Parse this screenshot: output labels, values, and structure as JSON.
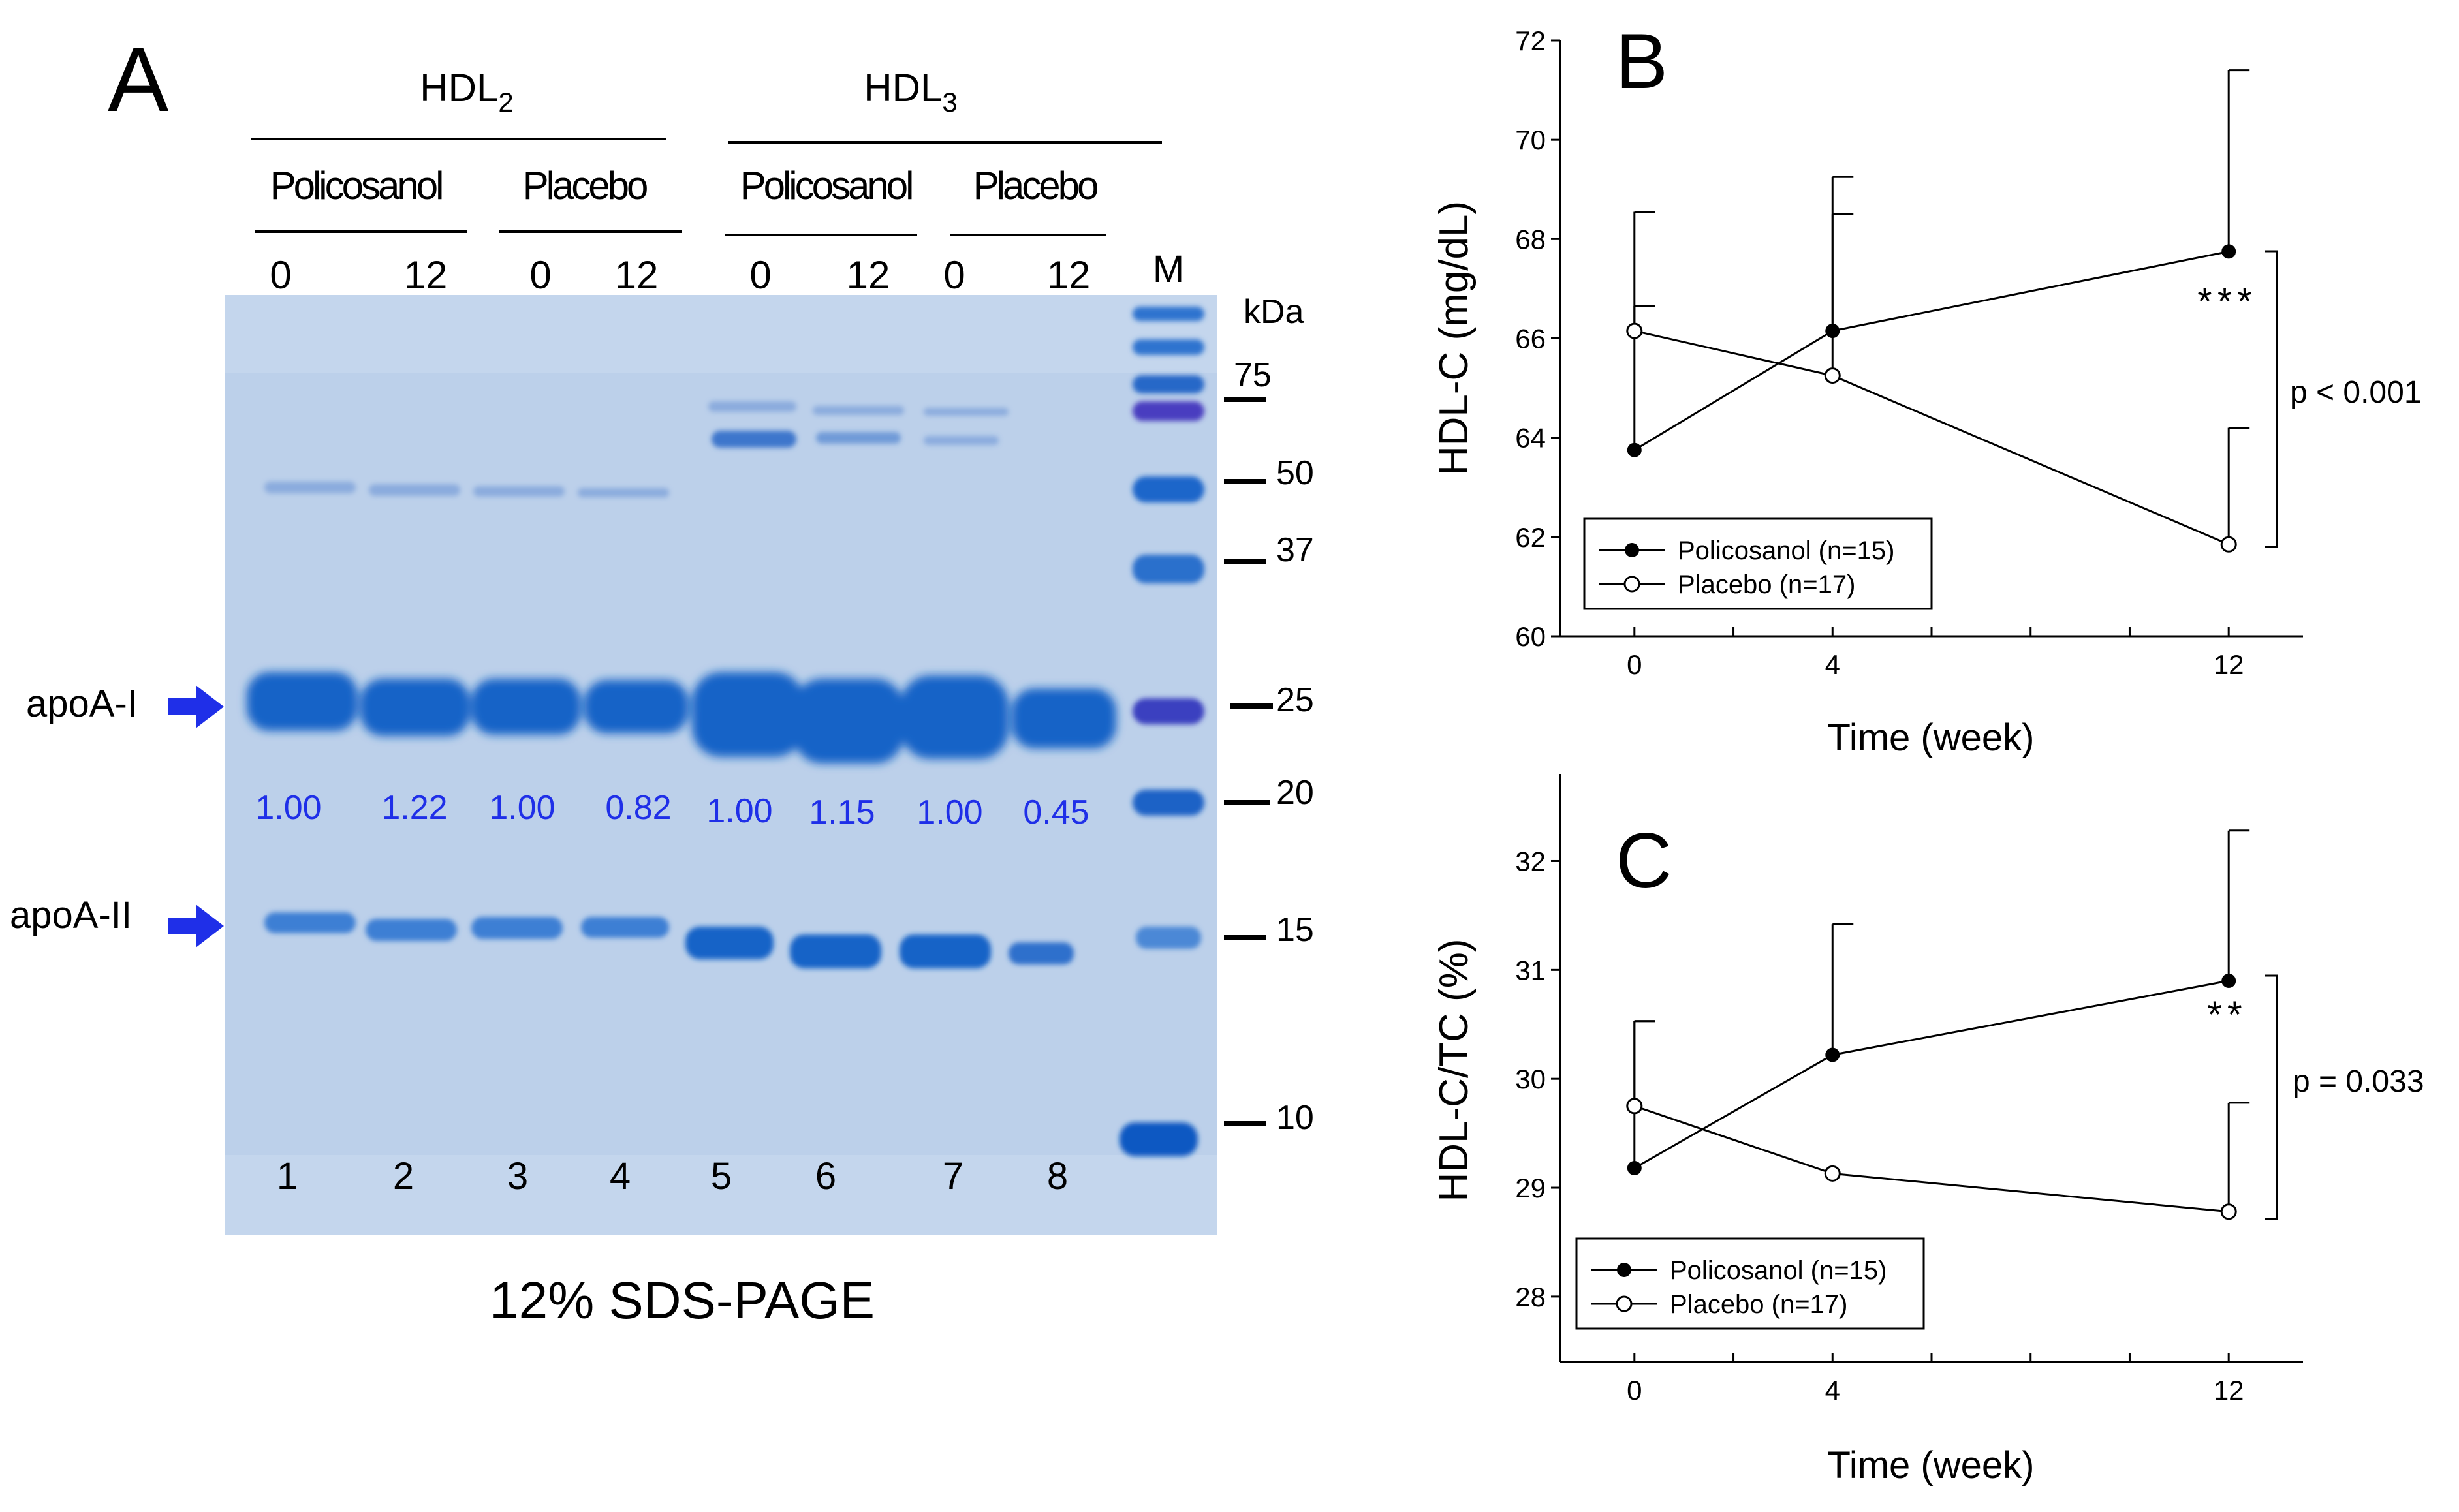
{
  "panel_a": {
    "letter": "A",
    "group_hdl2": {
      "base": "HDL",
      "sub": "2"
    },
    "group_hdl3": {
      "base": "HDL",
      "sub": "3"
    },
    "treatments": [
      "Policosanol",
      "Placebo",
      "Policosanol",
      "Placebo"
    ],
    "time_labels": [
      "0",
      "12",
      "0",
      "12",
      "0",
      "12",
      "0",
      "12"
    ],
    "marker_label": "M",
    "kda_label": "kDa",
    "ladder_kda": [
      "75",
      "50",
      "37",
      "25",
      "20",
      "15",
      "10"
    ],
    "apoa1_label": "apoA-I",
    "apoa2_label": "apoA-II",
    "ratios": [
      "1.00",
      "1.22",
      "1.00",
      "0.82",
      "1.00",
      "1.15",
      "1.00",
      "0.45"
    ],
    "lane_numbers": [
      "1",
      "2",
      "3",
      "4",
      "5",
      "6",
      "7",
      "8"
    ],
    "gel_caption": "12% SDS-PAGE",
    "colors": {
      "gel": "#bcd0ea",
      "band": "#1763c7",
      "arrow": "#1f2fe8",
      "ratio_text": "#1f2fe8"
    }
  },
  "chart_data": [
    {
      "type": "line",
      "panel": "B",
      "x": [
        0,
        4,
        12
      ],
      "xticks": [
        0,
        4,
        12
      ],
      "xlim": [
        -1.5,
        13.5
      ],
      "xlabel": "Time (week)",
      "ylabel": "HDL-C (mg/dL)",
      "ylim": [
        60,
        72
      ],
      "yticks": [
        60,
        62,
        64,
        66,
        68,
        70,
        72
      ],
      "series": [
        {
          "name": "Policosanol (n=15)",
          "marker": "filled-circle",
          "values": [
            63.75,
            66.15,
            67.75
          ],
          "error": [
            2.9,
            3.1,
            3.65
          ]
        },
        {
          "name": "Placebo (n=17)",
          "marker": "open-circle",
          "values": [
            66.15,
            65.25,
            61.85
          ],
          "error": [
            2.4,
            3.25,
            2.35
          ]
        }
      ],
      "significance": "***",
      "p_label": "p < 0.001",
      "legend": "bottom-left"
    },
    {
      "type": "line",
      "panel": "C",
      "x": [
        0,
        4,
        12
      ],
      "xticks": [
        0,
        4,
        12
      ],
      "xlim": [
        -1.5,
        13.5
      ],
      "xlabel": "Time (week)",
      "ylabel": "HDL-C/TC (%)",
      "ylim": [
        27.4,
        32.8
      ],
      "yticks": [
        28,
        29,
        30,
        31,
        32
      ],
      "series": [
        {
          "name": "Policosanol (n=15)",
          "marker": "filled-circle",
          "values": [
            29.18,
            30.22,
            30.9
          ],
          "error": [
            1.35,
            1.2,
            1.38
          ]
        },
        {
          "name": "Placebo (n=17)",
          "marker": "open-circle",
          "values": [
            29.75,
            29.13,
            28.78
          ],
          "error": [
            0.78,
            0.0,
            1.0
          ]
        }
      ],
      "significance": "**",
      "p_label": "p = 0.033",
      "legend": "bottom-left"
    }
  ]
}
